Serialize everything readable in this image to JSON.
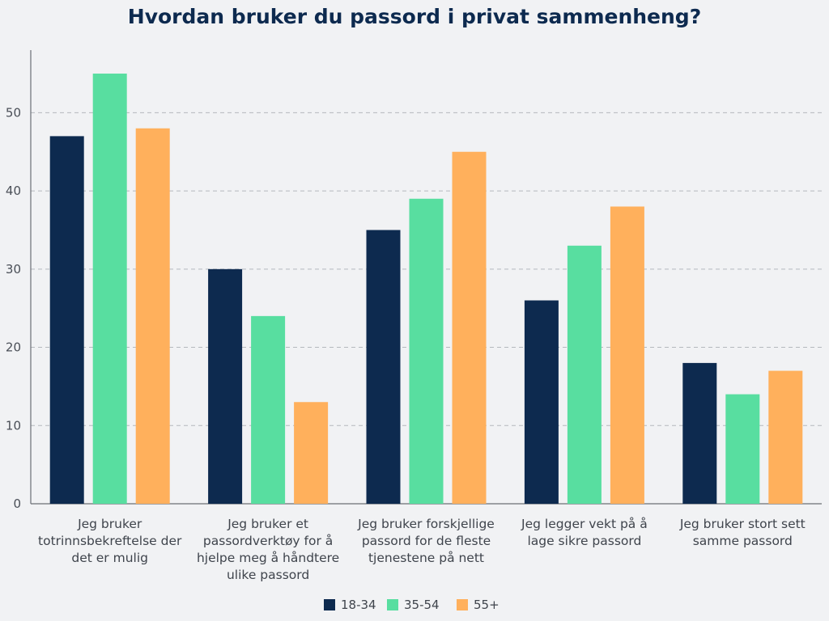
{
  "chart_data": {
    "type": "bar",
    "title": "Hvordan bruker du passord i privat sammenheng?",
    "xlabel": "",
    "ylabel": "",
    "ylim": [
      0,
      58
    ],
    "yticks": [
      0,
      10,
      20,
      30,
      40,
      50
    ],
    "grid": true,
    "legend_position": "bottom",
    "categories": [
      [
        "Jeg bruker",
        "totrinnsbekreftelse der",
        "det er mulig"
      ],
      [
        "Jeg bruker et",
        "passordverktøy for å",
        "hjelpe meg å håndtere",
        "ulike passord"
      ],
      [
        "Jeg bruker forskjellige",
        "passord for de fleste",
        "tjenestene på nett"
      ],
      [
        "Jeg legger vekt på å",
        "lage sikre passord"
      ],
      [
        "Jeg bruker stort sett",
        "samme passord"
      ]
    ],
    "series": [
      {
        "name": "18-34",
        "color": "#0d2a4f",
        "values": [
          47,
          30,
          35,
          26,
          18
        ]
      },
      {
        "name": "35-54",
        "color": "#58dea0",
        "values": [
          55,
          24,
          39,
          33,
          14
        ]
      },
      {
        "name": "55+",
        "color": "#ffb05c",
        "values": [
          48,
          13,
          45,
          38,
          17
        ]
      }
    ]
  }
}
